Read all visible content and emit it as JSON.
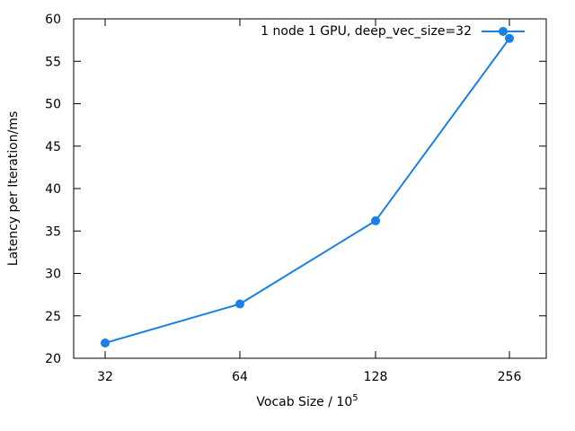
{
  "chart_data": {
    "type": "line",
    "xscale": "log2",
    "categories": [
      "32",
      "64",
      "128",
      "256"
    ],
    "x": [
      32,
      64,
      128,
      256
    ],
    "xlabel": "Vocab Size / 10",
    "xlabel_sup": "5",
    "ylabel": "Latency per Iteration/ms",
    "ylim": [
      20,
      60
    ],
    "yticks": [
      "20",
      "25",
      "30",
      "35",
      "40",
      "45",
      "50",
      "55",
      "60"
    ],
    "grid": false,
    "legend_position": "top-right",
    "series": [
      {
        "name": "1 node 1 GPU, deep_vec_size=32",
        "color": "#1a7fe6",
        "values": [
          21.8,
          26.4,
          36.2,
          57.7
        ]
      }
    ]
  }
}
